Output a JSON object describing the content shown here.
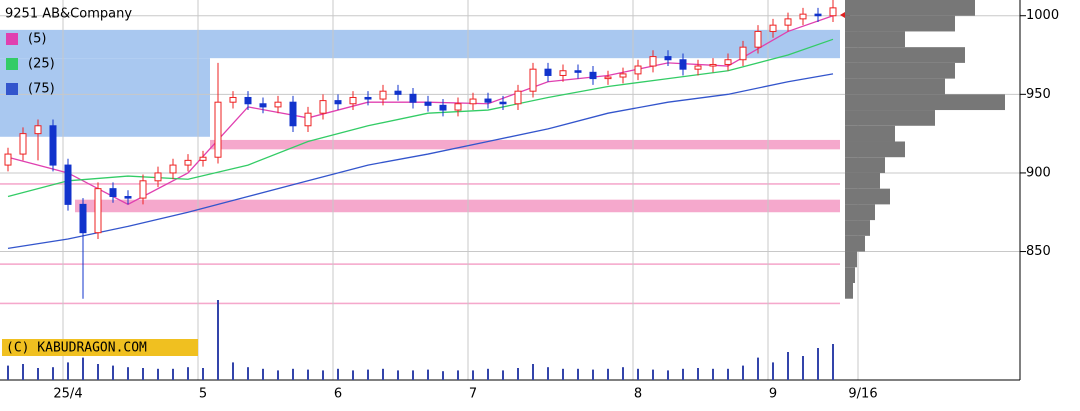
{
  "chart_data": {
    "type": "candlestick",
    "title": "9251 AB&Company",
    "watermark": "(C) KABUDRAGON.COM",
    "candles": {
      "open": [
        905,
        912,
        925,
        930,
        905,
        880,
        862,
        890,
        885,
        884,
        895,
        900,
        905,
        908,
        910,
        945,
        948,
        944,
        942,
        945,
        930,
        938,
        946,
        944,
        948,
        947,
        952,
        950,
        945,
        943,
        940,
        944,
        947,
        945,
        944,
        952,
        966,
        962,
        965,
        964,
        960,
        961,
        963,
        968,
        974,
        972,
        966,
        968,
        969,
        972,
        980,
        990,
        994,
        998,
        1001,
        1000
      ],
      "high": [
        916,
        929,
        934,
        934,
        909,
        884,
        894,
        894,
        889,
        899,
        904,
        909,
        912,
        914,
        970,
        952,
        952,
        948,
        949,
        949,
        942,
        950,
        950,
        952,
        952,
        956,
        956,
        954,
        949,
        947,
        948,
        951,
        951,
        949,
        956,
        970,
        970,
        969,
        969,
        968,
        965,
        967,
        972,
        978,
        978,
        976,
        972,
        973,
        976,
        984,
        994,
        998,
        1002,
        1005,
        1005,
        1010
      ],
      "low": [
        901,
        908,
        908,
        901,
        876,
        820,
        858,
        881,
        880,
        880,
        891,
        896,
        901,
        904,
        906,
        941,
        940,
        938,
        938,
        926,
        926,
        934,
        940,
        940,
        943,
        943,
        946,
        941,
        939,
        936,
        936,
        940,
        941,
        940,
        940,
        948,
        958,
        958,
        960,
        956,
        956,
        957,
        959,
        964,
        968,
        962,
        962,
        964,
        965,
        968,
        976,
        986,
        990,
        994,
        996,
        996
      ],
      "close": [
        912,
        925,
        930,
        905,
        880,
        862,
        890,
        885,
        884,
        895,
        900,
        905,
        908,
        910,
        945,
        948,
        944,
        942,
        945,
        930,
        938,
        946,
        944,
        948,
        947,
        952,
        950,
        945,
        943,
        940,
        944,
        947,
        945,
        944,
        952,
        966,
        962,
        965,
        964,
        960,
        961,
        963,
        968,
        974,
        972,
        966,
        968,
        969,
        972,
        980,
        990,
        994,
        998,
        1001,
        1000,
        1005
      ],
      "up_color": "#ee2222",
      "down_color": "#1133cc"
    },
    "volume": {
      "values": [
        18,
        20,
        15,
        16,
        22,
        28,
        20,
        18,
        16,
        15,
        14,
        14,
        16,
        15,
        100,
        22,
        16,
        14,
        12,
        14,
        13,
        12,
        14,
        12,
        13,
        14,
        12,
        12,
        13,
        11,
        12,
        12,
        14,
        12,
        15,
        20,
        16,
        14,
        14,
        13,
        14,
        16,
        14,
        13,
        12,
        14,
        15,
        14,
        14,
        18,
        28,
        22,
        35,
        30,
        40,
        45
      ],
      "color": "#3344aa",
      "vlim": [
        0,
        100
      ]
    },
    "series": [
      {
        "name": "(5)",
        "color": "#e040b0",
        "x": [
          0,
          4,
          8,
          12,
          16,
          20,
          24,
          28,
          32,
          36,
          40,
          44,
          48,
          52,
          55
        ],
        "values": [
          910,
          900,
          880,
          900,
          942,
          935,
          945,
          945,
          944,
          958,
          962,
          970,
          968,
          990,
          1000
        ]
      },
      {
        "name": "(25)",
        "color": "#33cc66",
        "x": [
          0,
          4,
          8,
          12,
          16,
          20,
          24,
          28,
          32,
          36,
          40,
          44,
          48,
          52,
          55
        ],
        "values": [
          885,
          895,
          898,
          896,
          905,
          920,
          930,
          938,
          940,
          948,
          955,
          960,
          965,
          975,
          985
        ]
      },
      {
        "name": "(75)",
        "color": "#3355cc",
        "x": [
          0,
          4,
          8,
          12,
          16,
          20,
          24,
          28,
          32,
          36,
          40,
          44,
          48,
          52,
          55
        ],
        "values": [
          852,
          858,
          866,
          875,
          885,
          895,
          905,
          912,
          920,
          928,
          938,
          945,
          950,
          958,
          963
        ]
      }
    ],
    "zones": [
      {
        "low": 973,
        "high": 991,
        "start": 0,
        "end": 55,
        "color": "#a9c8f0"
      },
      {
        "low": 923,
        "high": 973,
        "start": 0,
        "end": 13,
        "color": "#a9c8f0"
      },
      {
        "low": 915,
        "high": 921,
        "start": 14,
        "end": 55,
        "color": "#f5a8cc"
      },
      {
        "low": 875,
        "high": 883,
        "start": 5,
        "end": 55,
        "color": "#f5a8cc"
      },
      {
        "low": 892.5,
        "high": 893.5,
        "start": 0,
        "end": 55,
        "color": "#f5a8cc"
      },
      {
        "low": 841.5,
        "high": 842.5,
        "start": 0,
        "end": 55,
        "color": "#f5a8cc"
      },
      {
        "low": 816.5,
        "high": 817.5,
        "start": 0,
        "end": 55,
        "color": "#f5a8cc"
      }
    ],
    "profile": {
      "bins": [
        820,
        830,
        840,
        850,
        860,
        870,
        880,
        890,
        900,
        910,
        920,
        930,
        940,
        950,
        960,
        970,
        980,
        990,
        1000,
        1010
      ],
      "values": [
        8,
        10,
        12,
        20,
        25,
        30,
        45,
        35,
        40,
        60,
        50,
        90,
        160,
        100,
        110,
        120,
        60,
        110,
        130
      ],
      "color": "#777777",
      "plim": [
        0,
        160
      ]
    },
    "ylim": [
      816,
      1010
    ],
    "yticks": [
      850,
      900,
      950,
      1000
    ],
    "grid": true,
    "xticks": [
      {
        "value": 4,
        "label": "25/4"
      },
      {
        "value": 13,
        "label": "5"
      },
      {
        "value": 22,
        "label": "6"
      },
      {
        "value": 31,
        "label": "7"
      },
      {
        "value": 42,
        "label": "8"
      },
      {
        "value": 51,
        "label": "9"
      },
      {
        "value": 57,
        "label": "9/16"
      }
    ]
  }
}
